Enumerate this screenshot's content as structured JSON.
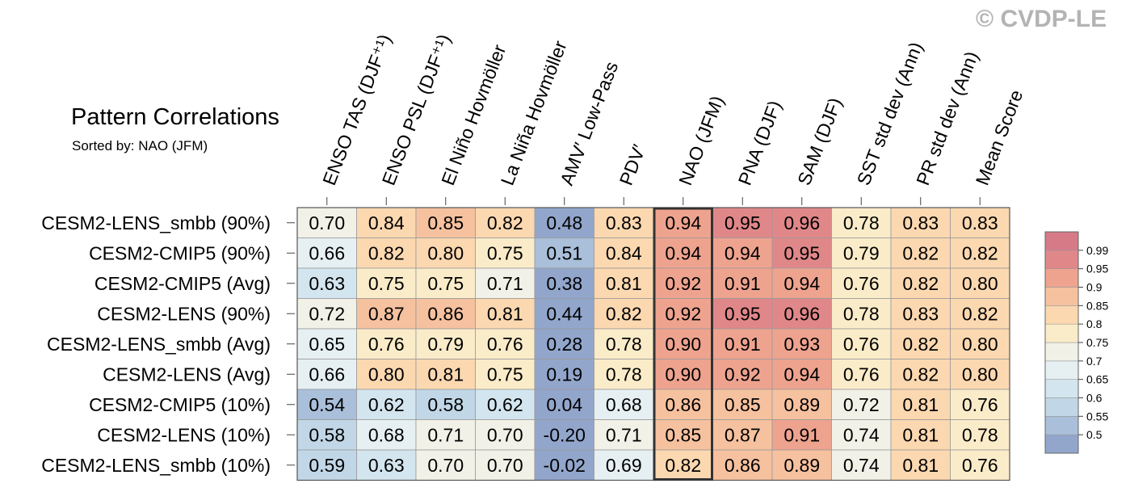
{
  "watermark": "© CVDP-LE",
  "chart_data": {
    "type": "heatmap",
    "title": "Pattern Correlations",
    "subtitle": "Sorted by: NAO (JFM)",
    "highlight_column": "NAO (JFM)",
    "columns": [
      "ENSO TAS (DJF⁺¹)",
      "ENSO PSL (DJF⁺¹)",
      "El Niño Hovmöller",
      "La Niña Hovmöller",
      "AMV′ Low-Pass",
      "PDV′",
      "NAO (JFM)",
      "PNA (DJF)",
      "SAM (DJF)",
      "SST std dev (Ann)",
      "PR std dev (Ann)",
      "Mean Score"
    ],
    "rows": [
      "CESM2-LENS_smbb (90%)",
      "CESM2-CMIP5 (90%)",
      "CESM2-CMIP5 (Avg)",
      "CESM2-LENS (90%)",
      "CESM2-LENS_smbb (Avg)",
      "CESM2-LENS (Avg)",
      "CESM2-CMIP5 (10%)",
      "CESM2-LENS (10%)",
      "CESM2-LENS_smbb (10%)"
    ],
    "values": [
      [
        0.7,
        0.84,
        0.85,
        0.82,
        0.48,
        0.83,
        0.94,
        0.95,
        0.96,
        0.78,
        0.83,
        0.83
      ],
      [
        0.66,
        0.82,
        0.8,
        0.75,
        0.51,
        0.84,
        0.94,
        0.94,
        0.95,
        0.79,
        0.82,
        0.82
      ],
      [
        0.63,
        0.75,
        0.75,
        0.71,
        0.38,
        0.81,
        0.92,
        0.91,
        0.94,
        0.76,
        0.82,
        0.8
      ],
      [
        0.72,
        0.87,
        0.86,
        0.81,
        0.44,
        0.82,
        0.92,
        0.95,
        0.96,
        0.78,
        0.83,
        0.82
      ],
      [
        0.65,
        0.76,
        0.79,
        0.76,
        0.28,
        0.78,
        0.9,
        0.91,
        0.93,
        0.76,
        0.82,
        0.8
      ],
      [
        0.66,
        0.8,
        0.81,
        0.75,
        0.19,
        0.78,
        0.9,
        0.92,
        0.94,
        0.76,
        0.82,
        0.8
      ],
      [
        0.54,
        0.62,
        0.58,
        0.62,
        0.04,
        0.68,
        0.86,
        0.85,
        0.89,
        0.72,
        0.81,
        0.76
      ],
      [
        0.58,
        0.68,
        0.71,
        0.7,
        -0.2,
        0.71,
        0.85,
        0.87,
        0.91,
        0.74,
        0.81,
        0.78
      ],
      [
        0.59,
        0.63,
        0.7,
        0.7,
        -0.02,
        0.69,
        0.82,
        0.86,
        0.89,
        0.74,
        0.81,
        0.76
      ]
    ],
    "labels": [
      [
        "0.70",
        "0.84",
        "0.85",
        "0.82",
        "0.48",
        "0.83",
        "0.94",
        "0.95",
        "0.96",
        "0.78",
        "0.83",
        "0.83"
      ],
      [
        "0.66",
        "0.82",
        "0.80",
        "0.75",
        "0.51",
        "0.84",
        "0.94",
        "0.94",
        "0.95",
        "0.79",
        "0.82",
        "0.82"
      ],
      [
        "0.63",
        "0.75",
        "0.75",
        "0.71",
        "0.38",
        "0.81",
        "0.92",
        "0.91",
        "0.94",
        "0.76",
        "0.82",
        "0.80"
      ],
      [
        "0.72",
        "0.87",
        "0.86",
        "0.81",
        "0.44",
        "0.82",
        "0.92",
        "0.95",
        "0.96",
        "0.78",
        "0.83",
        "0.82"
      ],
      [
        "0.65",
        "0.76",
        "0.79",
        "0.76",
        "0.28",
        "0.78",
        "0.90",
        "0.91",
        "0.93",
        "0.76",
        "0.82",
        "0.80"
      ],
      [
        "0.66",
        "0.80",
        "0.81",
        "0.75",
        "0.19",
        "0.78",
        "0.90",
        "0.92",
        "0.94",
        "0.76",
        "0.82",
        "0.80"
      ],
      [
        "0.54",
        "0.62",
        "0.58",
        "0.62",
        "0.04",
        "0.68",
        "0.86",
        "0.85",
        "0.89",
        "0.72",
        "0.81",
        "0.76"
      ],
      [
        "0.58",
        "0.68",
        "0.71",
        "0.70",
        "-0.20",
        "0.71",
        "0.85",
        "0.87",
        "0.91",
        "0.74",
        "0.81",
        "0.78"
      ],
      [
        "0.59",
        "0.63",
        "0.70",
        "0.70",
        "-0.02",
        "0.69",
        "0.82",
        "0.86",
        "0.89",
        "0.74",
        "0.81",
        "0.76"
      ]
    ],
    "colorbar": {
      "levels": [
        0.5,
        0.55,
        0.6,
        0.65,
        0.7,
        0.75,
        0.8,
        0.85,
        0.9,
        0.95,
        0.99
      ],
      "labels": [
        "0.5",
        "0.55",
        "0.6",
        "0.65",
        "0.7",
        "0.75",
        "0.8",
        "0.85",
        "0.9",
        "0.95",
        "0.99"
      ],
      "colors": [
        "#92a6cc",
        "#a9bfda",
        "#c1d7e7",
        "#d3e5ee",
        "#e6f0f3",
        "#f2f1e7",
        "#fbecc9",
        "#fbd8b0",
        "#f6c19f",
        "#eea38f",
        "#e08789",
        "#d67a88"
      ]
    }
  }
}
